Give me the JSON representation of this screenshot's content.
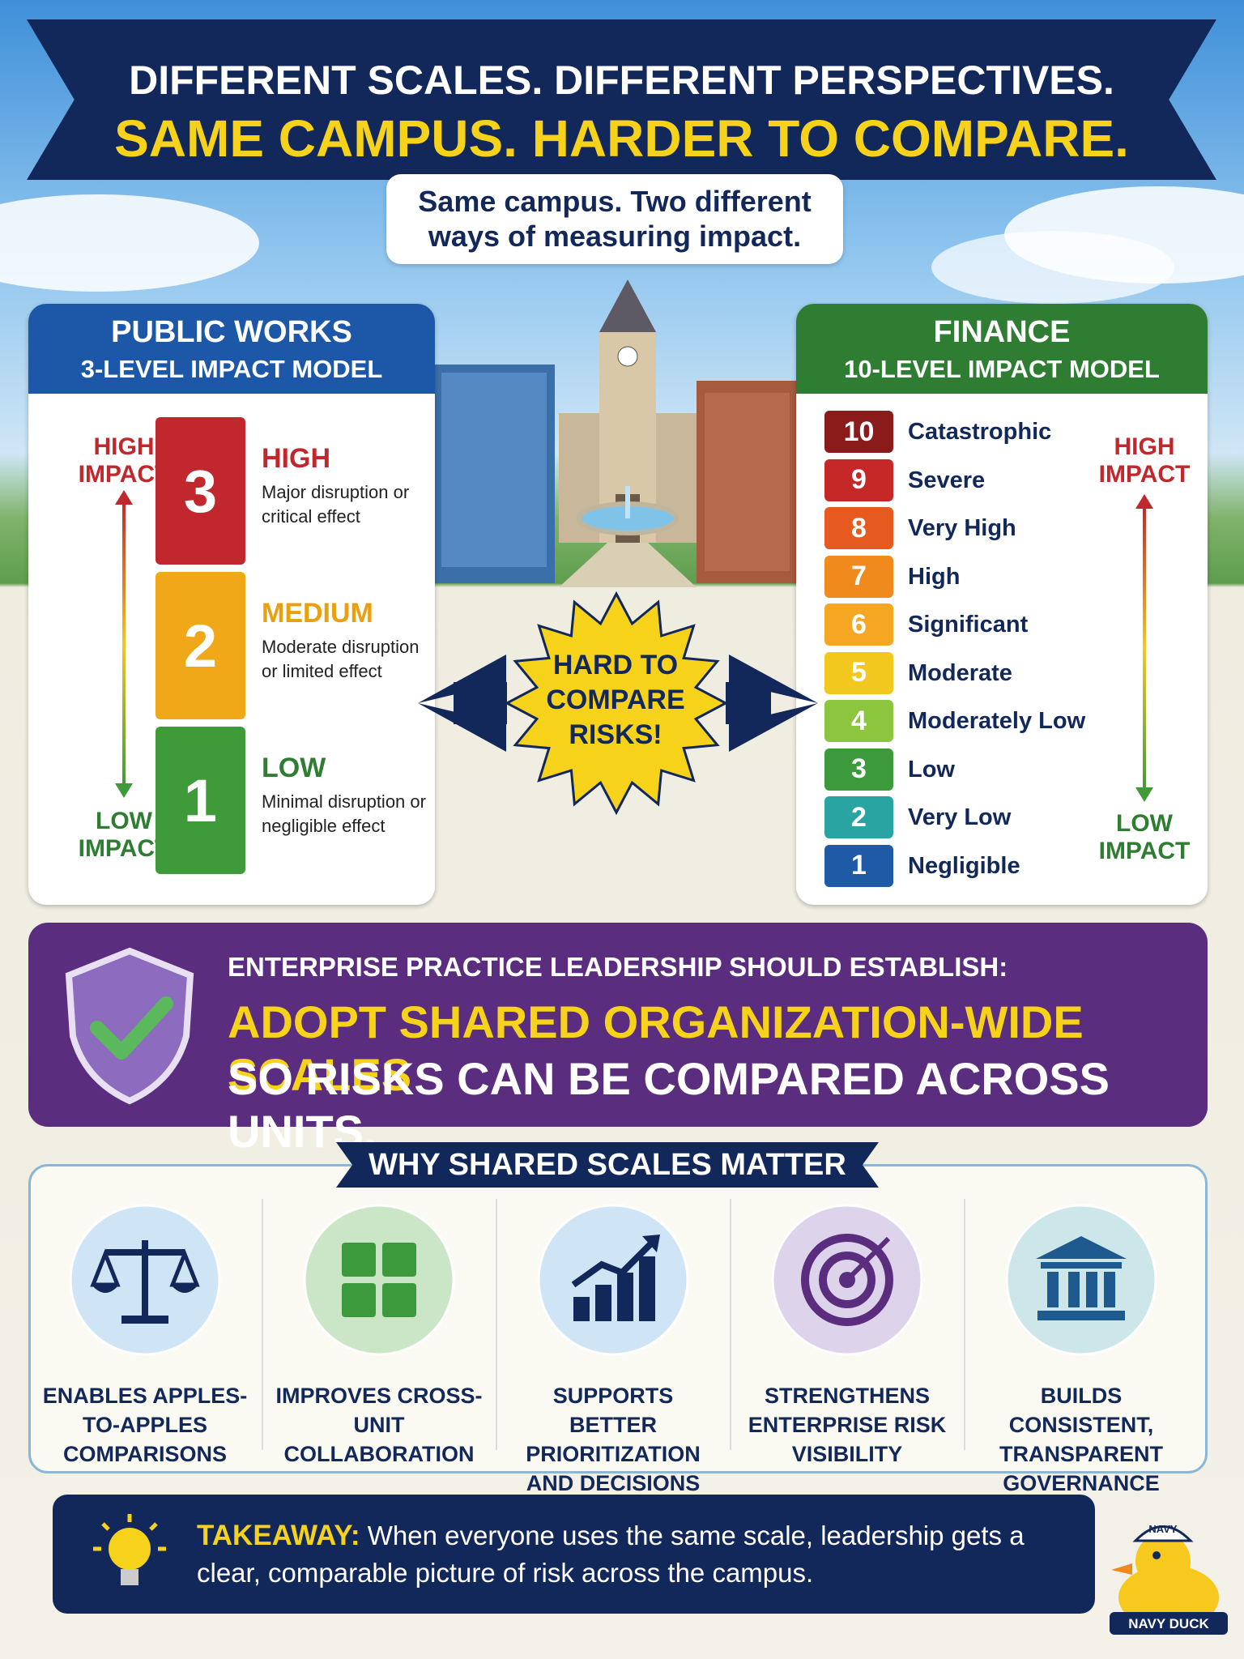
{
  "banner": {
    "line1": "DIFFERENT SCALES. DIFFERENT PERSPECTIVES.",
    "line2": "SAME CAMPUS. HARDER TO COMPARE."
  },
  "subtitle": "Same campus. Two different ways of measuring impact.",
  "public_works": {
    "title": "PUBLIC WORKS",
    "subtitle": "3-LEVEL IMPACT MODEL",
    "high_label": "HIGH IMPACT",
    "low_label": "LOW IMPACT",
    "levels": [
      {
        "number": 3,
        "name": "HIGH",
        "description": "Major disruption or critical effect"
      },
      {
        "number": 2,
        "name": "MEDIUM",
        "description": "Moderate disruption or limited effect"
      },
      {
        "number": 1,
        "name": "LOW",
        "description": "Minimal disruption or negligible effect"
      }
    ]
  },
  "finance": {
    "title": "FINANCE",
    "subtitle": "10-LEVEL IMPACT MODEL",
    "high_label": "HIGH IMPACT",
    "low_label": "LOW IMPACT",
    "levels": [
      {
        "number": 10,
        "name": "Catastrophic"
      },
      {
        "number": 9,
        "name": "Severe"
      },
      {
        "number": 8,
        "name": "Very High"
      },
      {
        "number": 7,
        "name": "High"
      },
      {
        "number": 6,
        "name": "Significant"
      },
      {
        "number": 5,
        "name": "Moderate"
      },
      {
        "number": 4,
        "name": "Moderately Low"
      },
      {
        "number": 3,
        "name": "Low"
      },
      {
        "number": 2,
        "name": "Very Low"
      },
      {
        "number": 1,
        "name": "Negligible"
      }
    ]
  },
  "center_burst": "HARD TO COMPARE RISKS!",
  "recommendation": {
    "lead": "ENTERPRISE PRACTICE LEADERSHIP SHOULD ESTABLISH:",
    "headline": "ADOPT SHARED ORGANIZATION-WIDE SCALES",
    "subline": "SO RISKS CAN BE COMPARED ACROSS UNITS."
  },
  "why": {
    "title": "WHY SHARED SCALES MATTER",
    "items": [
      "ENABLES APPLES-TO-APPLES COMPARISONS",
      "IMPROVES CROSS-UNIT COLLABORATION",
      "SUPPORTS BETTER PRIORITIZATION AND DECISIONS",
      "STRENGTHENS ENTERPRISE RISK VISIBILITY",
      "BUILDS CONSISTENT, TRANSPARENT GOVERNANCE"
    ]
  },
  "takeaway": {
    "label": "TAKEAWAY:",
    "text": "When everyone uses the same scale, leadership gets a clear, comparable picture of risk across the campus."
  },
  "mascot": {
    "hat": "NAVY",
    "badge": "NAVY DUCK"
  }
}
